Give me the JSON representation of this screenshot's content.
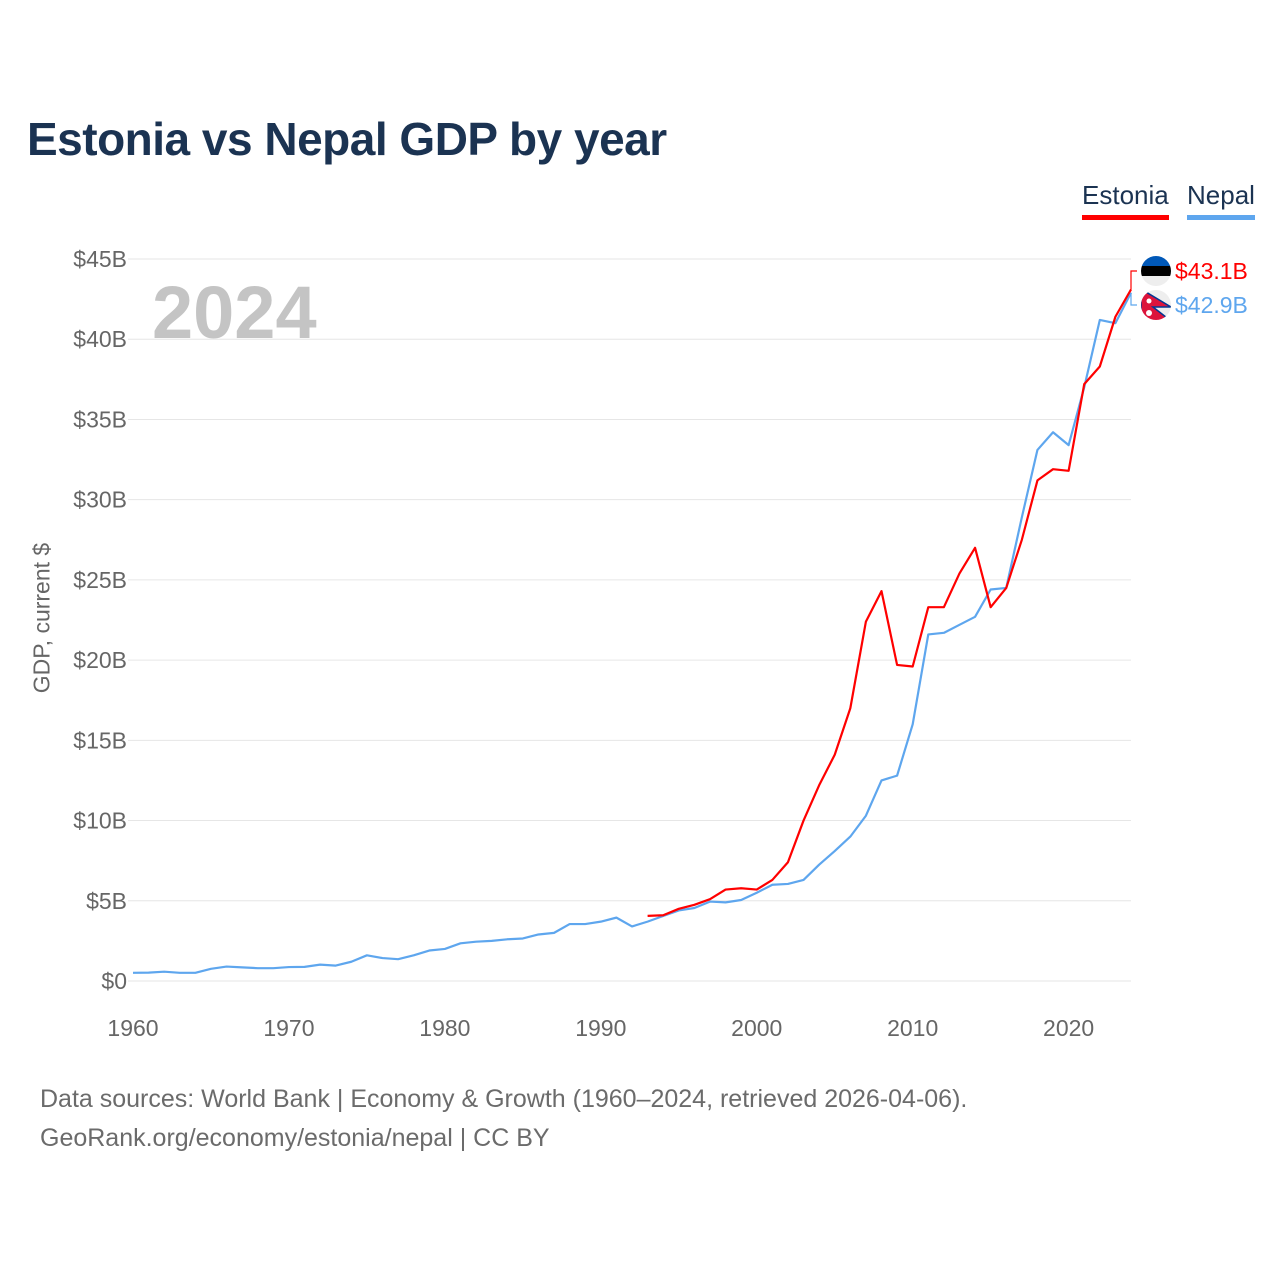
{
  "title": "Estonia vs Nepal GDP by year",
  "year_label": "2024",
  "sources": [
    "Data sources: World Bank | Economy & Growth (1960–2024, retrieved 2026-04-06).",
    "GeoRank.org/economy/estonia/nepal | CC BY"
  ],
  "chart_data": {
    "type": "line",
    "title": "Estonia vs Nepal GDP by year",
    "xlabel": "",
    "ylabel": "GDP, current $",
    "xlim": [
      1960,
      2024
    ],
    "ylim": [
      0,
      45
    ],
    "xticks": [
      1960,
      1970,
      1980,
      1990,
      2000,
      2010,
      2020
    ],
    "xtick_labels": [
      "1960",
      "1970",
      "1980",
      "1990",
      "2000",
      "2010",
      "2020"
    ],
    "yticks": [
      0,
      5,
      10,
      15,
      20,
      25,
      30,
      35,
      40,
      45
    ],
    "ytick_labels": [
      "$0",
      "$5B",
      "$10B",
      "$15B",
      "$20B",
      "$25B",
      "$30B",
      "$35B",
      "$40B",
      "$45B"
    ],
    "grid": true,
    "legend_position": "top-right",
    "series": [
      {
        "name": "Estonia",
        "color": "#ff0000",
        "end_label": "$43.1B",
        "flag": "estonia-flag",
        "x": [
          1993,
          1994,
          1995,
          1996,
          1997,
          1998,
          1999,
          2000,
          2001,
          2002,
          2003,
          2004,
          2005,
          2006,
          2007,
          2008,
          2009,
          2010,
          2011,
          2012,
          2013,
          2014,
          2015,
          2016,
          2017,
          2018,
          2019,
          2020,
          2021,
          2022,
          2023,
          2024
        ],
        "values": [
          4.06,
          4.1,
          4.5,
          4.75,
          5.1,
          5.7,
          5.78,
          5.7,
          6.3,
          7.4,
          10.0,
          12.2,
          14.1,
          17.0,
          22.4,
          24.3,
          19.7,
          19.6,
          23.3,
          23.3,
          25.4,
          27.0,
          23.3,
          24.5,
          27.5,
          31.2,
          31.9,
          31.8,
          37.2,
          38.3,
          41.4,
          43.1
        ]
      },
      {
        "name": "Nepal",
        "color": "#5ea6ee",
        "end_label": "$42.9B",
        "flag": "nepal-flag",
        "x": [
          1960,
          1961,
          1962,
          1963,
          1964,
          1965,
          1966,
          1967,
          1968,
          1969,
          1970,
          1971,
          1972,
          1973,
          1974,
          1975,
          1976,
          1977,
          1978,
          1979,
          1980,
          1981,
          1982,
          1983,
          1984,
          1985,
          1986,
          1987,
          1988,
          1989,
          1990,
          1991,
          1992,
          1993,
          1994,
          1995,
          1996,
          1997,
          1998,
          1999,
          2000,
          2001,
          2002,
          2003,
          2004,
          2005,
          2006,
          2007,
          2008,
          2009,
          2010,
          2011,
          2012,
          2013,
          2014,
          2015,
          2016,
          2017,
          2018,
          2019,
          2020,
          2021,
          2022,
          2023,
          2024
        ],
        "values": [
          0.51,
          0.52,
          0.58,
          0.51,
          0.51,
          0.76,
          0.9,
          0.85,
          0.8,
          0.8,
          0.87,
          0.88,
          1.02,
          0.96,
          1.2,
          1.6,
          1.43,
          1.36,
          1.6,
          1.9,
          2.0,
          2.35,
          2.45,
          2.5,
          2.6,
          2.65,
          2.9,
          3.0,
          3.55,
          3.55,
          3.7,
          3.95,
          3.4,
          3.7,
          4.05,
          4.4,
          4.55,
          4.95,
          4.9,
          5.05,
          5.5,
          6.0,
          6.05,
          6.3,
          7.25,
          8.1,
          9.0,
          10.3,
          12.5,
          12.8,
          16.0,
          21.6,
          21.7,
          22.2,
          22.7,
          24.4,
          24.5,
          28.9,
          33.1,
          34.2,
          33.4,
          37.0,
          41.2,
          41.0,
          42.9
        ]
      }
    ]
  }
}
